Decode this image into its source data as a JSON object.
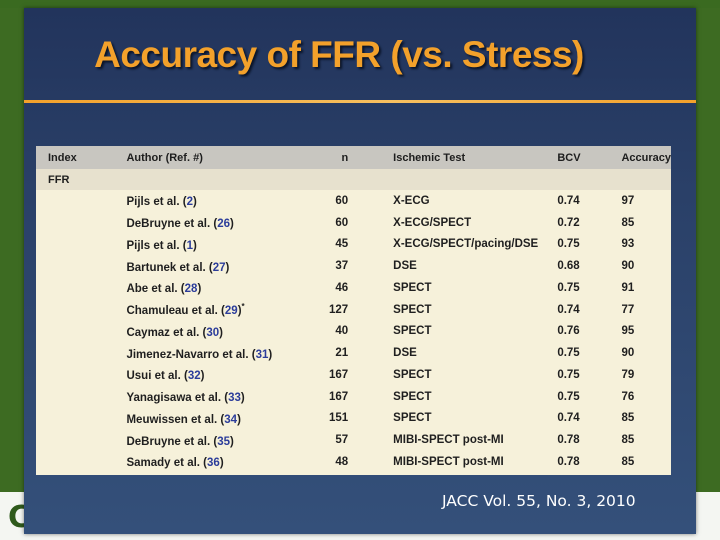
{
  "slide": {
    "title": "Accuracy of FFR (vs. Stress)",
    "citation": "JACC Vol. 55, No. 3, 2010",
    "logo_fragment": "C"
  },
  "table": {
    "headers": [
      "Index",
      "Author (Ref. #)",
      "n",
      "Ischemic Test",
      "BCV",
      "Accuracy"
    ],
    "section_label": "FFR",
    "rows": [
      {
        "author": "Pijls et al.",
        "ref": "2",
        "mark": "",
        "n": "60",
        "test": "X-ECG",
        "bcv": "0.74",
        "accuracy": "97"
      },
      {
        "author": "DeBruyne et al.",
        "ref": "26",
        "mark": "",
        "n": "60",
        "test": "X-ECG/SPECT",
        "bcv": "0.72",
        "accuracy": "85"
      },
      {
        "author": "Pijls et al.",
        "ref": "1",
        "mark": "",
        "n": "45",
        "test": "X-ECG/SPECT/pacing/DSE",
        "bcv": "0.75",
        "accuracy": "93"
      },
      {
        "author": "Bartunek et al.",
        "ref": "27",
        "mark": "",
        "n": "37",
        "test": "DSE",
        "bcv": "0.68",
        "accuracy": "90"
      },
      {
        "author": "Abe et al.",
        "ref": "28",
        "mark": "",
        "n": "46",
        "test": "SPECT",
        "bcv": "0.75",
        "accuracy": "91"
      },
      {
        "author": "Chamuleau et al.",
        "ref": "29",
        "mark": "*",
        "n": "127",
        "test": "SPECT",
        "bcv": "0.74",
        "accuracy": "77"
      },
      {
        "author": "Caymaz et al.",
        "ref": "30",
        "mark": "",
        "n": "40",
        "test": "SPECT",
        "bcv": "0.76",
        "accuracy": "95"
      },
      {
        "author": "Jimenez-Navarro et al.",
        "ref": "31",
        "mark": "",
        "n": "21",
        "test": "DSE",
        "bcv": "0.75",
        "accuracy": "90"
      },
      {
        "author": "Usui et al.",
        "ref": "32",
        "mark": "",
        "n": "167",
        "test": "SPECT",
        "bcv": "0.75",
        "accuracy": "79"
      },
      {
        "author": "Yanagisawa et al.",
        "ref": "33",
        "mark": "",
        "n": "167",
        "test": "SPECT",
        "bcv": "0.75",
        "accuracy": "76"
      },
      {
        "author": "Meuwissen et al.",
        "ref": "34",
        "mark": "",
        "n": "151",
        "test": "SPECT",
        "bcv": "0.74",
        "accuracy": "85"
      },
      {
        "author": "DeBruyne et al.",
        "ref": "35",
        "mark": "",
        "n": "57",
        "test": "MIBI-SPECT post-MI",
        "bcv": "0.78",
        "accuracy": "85"
      },
      {
        "author": "Samady et al.",
        "ref": "36",
        "mark": "",
        "n": "48",
        "test": "MIBI-SPECT post-MI",
        "bcv": "0.78",
        "accuracy": "85"
      }
    ]
  },
  "colors": {
    "title": "#f3a12b",
    "slide_background": "#2a4068",
    "table_background": "#f6f1da",
    "reference_number": "#2b3c9a",
    "outer_green": "#3d6b22"
  }
}
